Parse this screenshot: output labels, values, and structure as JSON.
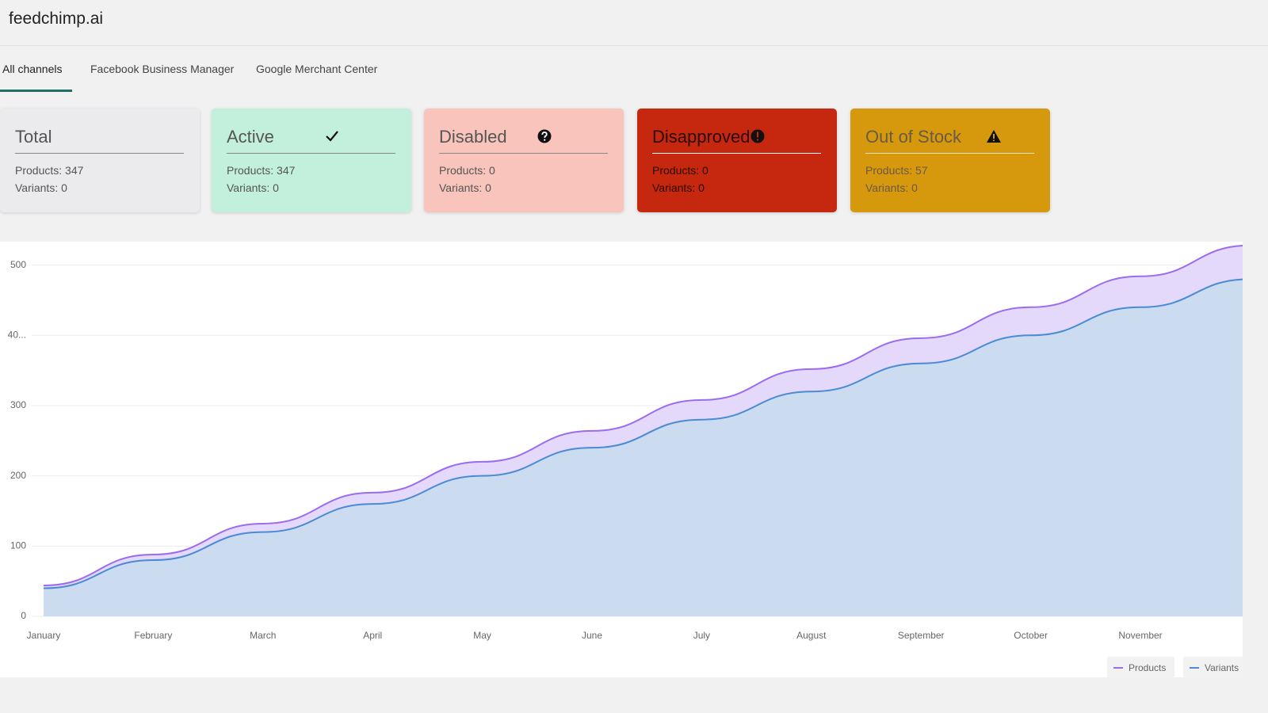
{
  "header": {
    "title": "feedchimp.ai"
  },
  "tabs": [
    "All channels",
    "Facebook Business Manager",
    "Google Merchant Center"
  ],
  "cards": [
    {
      "title": "Total",
      "products": "Products: 347",
      "variants": "Variants: 0"
    },
    {
      "title": "Active",
      "products": "Products: 347",
      "variants": "Variants: 0"
    },
    {
      "title": "Disabled",
      "products": "Products: 0",
      "variants": "Variants: 0"
    },
    {
      "title": "Disapproved",
      "products": "Products: 0",
      "variants": "Variants: 0"
    },
    {
      "title": "Out of Stock",
      "products": "Products: 57",
      "variants": "Variants: 0"
    }
  ],
  "chart_data": {
    "type": "area",
    "categories": [
      "January",
      "February",
      "March",
      "April",
      "May",
      "June",
      "July",
      "August",
      "September",
      "October",
      "November",
      null
    ],
    "series": [
      {
        "name": "Products",
        "color": "#9b6cf0",
        "fill": "#e4d8fb",
        "values": [
          44,
          88,
          132,
          176,
          220,
          264,
          308,
          352,
          396,
          440,
          484,
          528
        ]
      },
      {
        "name": "Variants",
        "color": "#4a8bd4",
        "fill": "#cbdcf0",
        "values": [
          40,
          80,
          120,
          160,
          200,
          240,
          280,
          320,
          360,
          400,
          440,
          480
        ]
      }
    ],
    "ylim": [
      0,
      530
    ],
    "yticks": [
      0,
      100,
      200,
      300,
      {
        "value": 400,
        "label": "40..."
      },
      500
    ],
    "grid": true
  }
}
